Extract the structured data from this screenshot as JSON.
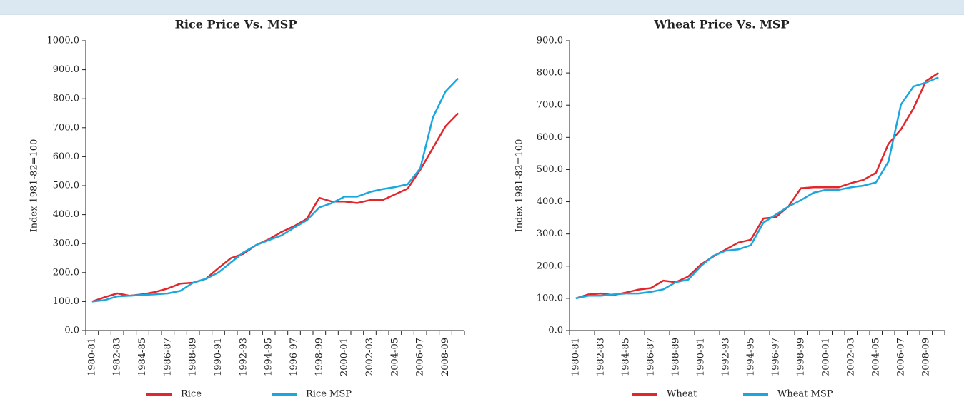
{
  "chart_data": [
    {
      "type": "line",
      "title": "Rice Price Vs. MSP",
      "y_label": "Index 1981-82=100",
      "categories": [
        "1980-81",
        null,
        "1982-83",
        null,
        "1984-85",
        null,
        "1986-87",
        null,
        "1988-89",
        null,
        "1990-91",
        null,
        "1992-93",
        null,
        "1994-95",
        null,
        "1996-97",
        null,
        "1998-99",
        null,
        "2000-01",
        null,
        "2002-03",
        null,
        "2004-05",
        null,
        "2006-07",
        null,
        "2008-09",
        null
      ],
      "series": [
        {
          "name": "Rice",
          "color": "#e3262b",
          "values": [
            100,
            115,
            128,
            120,
            125,
            133,
            145,
            162,
            165,
            178,
            215,
            250,
            265,
            295,
            315,
            340,
            360,
            385,
            458,
            445,
            445,
            440,
            450,
            450,
            470,
            490,
            555,
            630,
            705,
            750
          ]
        },
        {
          "name": "Rice MSP",
          "color": "#1aa7e0",
          "values": [
            100,
            105,
            118,
            120,
            123,
            125,
            128,
            137,
            165,
            178,
            200,
            235,
            270,
            295,
            312,
            328,
            355,
            380,
            425,
            440,
            462,
            462,
            478,
            488,
            495,
            505,
            560,
            735,
            825,
            870
          ]
        }
      ],
      "ylim": [
        0,
        1000
      ],
      "yticks": [
        {
          "value": 0,
          "label": "0.0"
        },
        {
          "value": 100,
          "label": "100.0"
        },
        {
          "value": 200,
          "label": "200.0"
        },
        {
          "value": 300,
          "label": "300.0"
        },
        {
          "value": 400,
          "label": "400.0"
        },
        {
          "value": 500,
          "label": "500.0"
        },
        {
          "value": 600,
          "label": "600.0"
        },
        {
          "value": 700,
          "label": "700.0"
        },
        {
          "value": 800,
          "label": "800.0"
        },
        {
          "value": 900,
          "label": "900.0"
        },
        {
          "value": 1000,
          "label": "1000.0"
        }
      ],
      "legend": "bottom"
    },
    {
      "type": "line",
      "title": "Wheat Price Vs. MSP",
      "y_label": "Index 1981-82=100",
      "categories": [
        "1980-81",
        null,
        "1982-83",
        null,
        "1984-85",
        null,
        "1986-87",
        null,
        "1988-89",
        null,
        "1990-91",
        null,
        "1992-93",
        null,
        "1994-95",
        null,
        "1996-97",
        null,
        "1998-99",
        null,
        "2000-01",
        null,
        "2002-03",
        null,
        "2004-05",
        null,
        "2006-07",
        null,
        "2008-09",
        null
      ],
      "series": [
        {
          "name": "Wheat",
          "color": "#e3262b",
          "values": [
            100,
            112,
            115,
            110,
            118,
            127,
            132,
            155,
            150,
            168,
            205,
            230,
            252,
            273,
            282,
            348,
            352,
            385,
            442,
            445,
            445,
            445,
            458,
            468,
            490,
            580,
            625,
            690,
            775,
            800
          ]
        },
        {
          "name": "Wheat MSP",
          "color": "#1aa7e0",
          "values": [
            100,
            108,
            108,
            112,
            115,
            115,
            120,
            128,
            150,
            158,
            200,
            232,
            248,
            252,
            265,
            335,
            360,
            385,
            405,
            428,
            437,
            437,
            445,
            450,
            460,
            525,
            702,
            758,
            770,
            786
          ]
        }
      ],
      "ylim": [
        0,
        900
      ],
      "yticks": [
        {
          "value": 0,
          "label": "0.0"
        },
        {
          "value": 100,
          "label": "100.0"
        },
        {
          "value": 200,
          "label": "200.0"
        },
        {
          "value": 300,
          "label": "300.0"
        },
        {
          "value": 400,
          "label": "400.0"
        },
        {
          "value": 500,
          "label": "500.0"
        },
        {
          "value": 600,
          "label": "600.0"
        },
        {
          "value": 700,
          "label": "700.0"
        },
        {
          "value": 800,
          "label": "800.0"
        },
        {
          "value": 900,
          "label": "900.0"
        }
      ],
      "legend": "bottom"
    }
  ]
}
